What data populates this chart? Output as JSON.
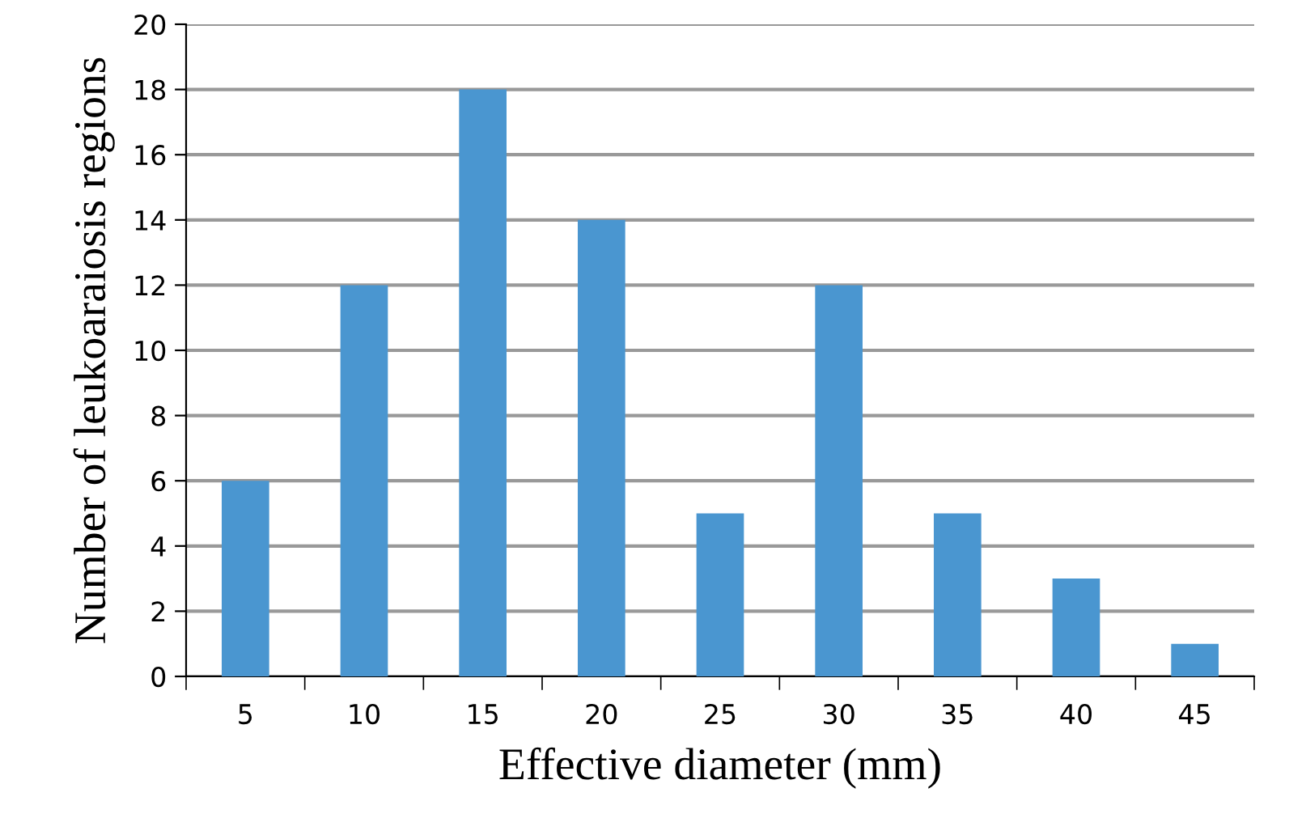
{
  "chart_data": {
    "type": "bar",
    "xlabel": "Effective diameter (mm)",
    "ylabel": "Number of leukoaraiosis regions",
    "categories": [
      "5",
      "10",
      "15",
      "20",
      "25",
      "30",
      "35",
      "40",
      "45"
    ],
    "values": [
      6,
      12,
      18,
      14,
      5,
      12,
      5,
      3,
      1
    ],
    "color": "#4a96d0",
    "ylim": [
      0,
      20
    ],
    "yticks": [
      0,
      2,
      4,
      6,
      8,
      10,
      12,
      14,
      16,
      18,
      20
    ],
    "grid": "y",
    "legend": false
  }
}
